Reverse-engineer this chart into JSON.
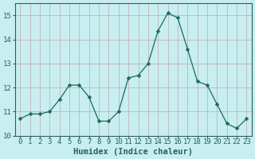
{
  "x": [
    0,
    1,
    2,
    3,
    4,
    5,
    6,
    7,
    8,
    9,
    10,
    11,
    12,
    13,
    14,
    15,
    16,
    17,
    18,
    19,
    20,
    21,
    22,
    23
  ],
  "y": [
    10.7,
    10.9,
    10.9,
    11.0,
    11.5,
    12.1,
    12.1,
    11.6,
    10.6,
    10.6,
    11.0,
    12.4,
    12.5,
    13.0,
    14.35,
    15.1,
    14.9,
    13.6,
    12.25,
    12.1,
    11.3,
    10.5,
    10.3,
    10.7
  ],
  "line_color": "#1a6b5a",
  "marker": "D",
  "marker_size": 2.5,
  "bg_color": "#c8eef0",
  "grid_color": "#c0a8a8",
  "axis_color": "#2a6060",
  "xlabel": "Humidex (Indice chaleur)",
  "ylim": [
    10,
    15.5
  ],
  "xlim": [
    -0.5,
    23.5
  ],
  "yticks": [
    10,
    11,
    12,
    13,
    14,
    15
  ],
  "xtick_labels": [
    "0",
    "1",
    "2",
    "3",
    "4",
    "5",
    "6",
    "7",
    "8",
    "9",
    "10",
    "11",
    "12",
    "13",
    "14",
    "15",
    "16",
    "17",
    "18",
    "19",
    "20",
    "21",
    "22",
    "23"
  ],
  "tick_fontsize": 6.5,
  "xlabel_fontsize": 7.5
}
